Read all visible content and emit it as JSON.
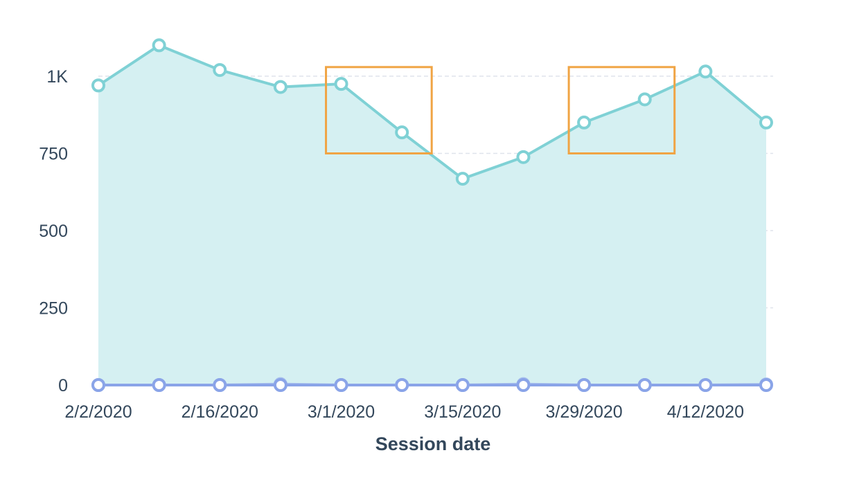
{
  "chart_data": {
    "type": "area",
    "title": "",
    "xlabel": "Session date",
    "ylabel": "",
    "ylim": [
      0,
      1000
    ],
    "y_ticks": [
      0,
      250,
      500,
      750,
      1000
    ],
    "y_tick_labels": [
      "0",
      "250",
      "500",
      "750",
      "1K"
    ],
    "x": [
      "2/2/2020",
      "2/9/2020",
      "2/16/2020",
      "2/23/2020",
      "3/1/2020",
      "3/8/2020",
      "3/15/2020",
      "3/22/2020",
      "3/29/2020",
      "4/5/2020",
      "4/12/2020",
      "4/19/2020"
    ],
    "x_tick_labels": [
      "2/2/2020",
      "2/16/2020",
      "3/1/2020",
      "3/15/2020",
      "3/29/2020",
      "4/12/2020"
    ],
    "grid": true,
    "series": [
      {
        "values": [
          970,
          1100,
          1020,
          965,
          975,
          818,
          668,
          738,
          850,
          925,
          1015,
          850
        ],
        "color": "#7fd1d5",
        "fill": "#d5f0f2"
      },
      {
        "values": [
          0,
          0,
          0,
          3,
          0,
          0,
          0,
          3,
          0,
          0,
          0,
          2
        ],
        "color": "#a8c0ee",
        "fill": "none"
      },
      {
        "values": [
          0,
          0,
          0,
          0,
          0,
          0,
          0,
          0,
          0,
          0,
          0,
          0
        ],
        "color": "#8aa4e8",
        "fill": "none"
      }
    ],
    "highlight_boxes": [
      {
        "x_start": "3/1/2020",
        "x_end": "3/8/2020",
        "y_start": 750,
        "y_end": 1025,
        "color": "#f0a444"
      },
      {
        "x_start": "3/29/2020",
        "x_end": "4/5/2020",
        "y_start": 750,
        "y_end": 1025,
        "color": "#f0a444"
      }
    ]
  }
}
